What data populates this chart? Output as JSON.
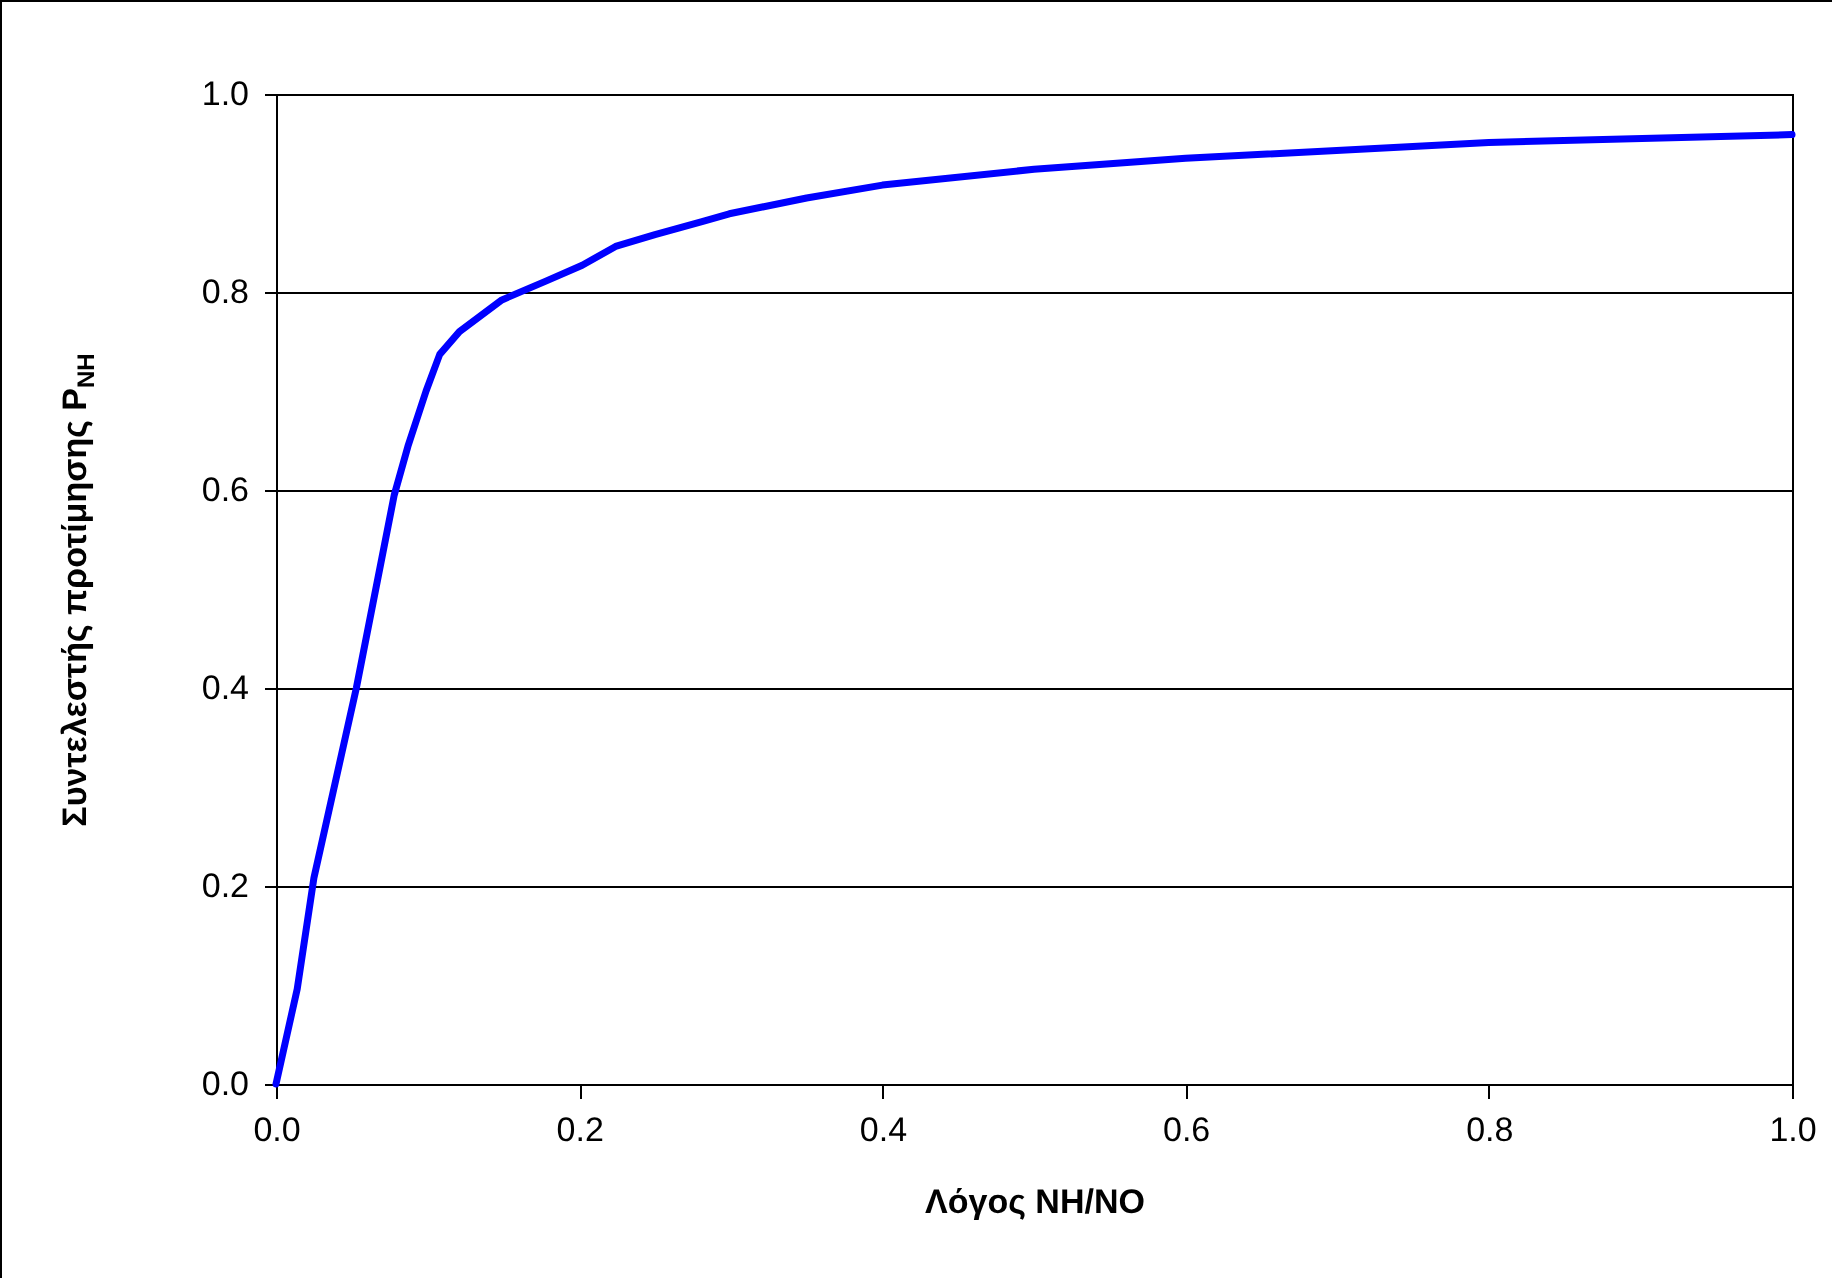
{
  "chart_data": {
    "type": "line",
    "xlabel": "Λόγος NH/NO",
    "ylabel": "Συντελεστής προτίμησης P$_{NH}$",
    "x": [
      0,
      0.014,
      0.025,
      0.053,
      0.078,
      0.087,
      0.099,
      0.108,
      0.121,
      0.149,
      0.178,
      0.202,
      0.224,
      0.25,
      0.281,
      0.299,
      0.35,
      0.4,
      0.5,
      0.6,
      0.8,
      1.0
    ],
    "series": [
      {
        "color": "#0000ff",
        "values": [
          0,
          0.096,
          0.208,
          0.4,
          0.595,
          0.644,
          0.7,
          0.737,
          0.76,
          0.792,
          0.811,
          0.827,
          0.846,
          0.858,
          0.871,
          0.879,
          0.895,
          0.908,
          0.924,
          0.935,
          0.951,
          0.959
        ]
      }
    ],
    "xlim": [
      0,
      1
    ],
    "ylim": [
      0,
      1
    ],
    "xticks": [
      {
        "value": 0,
        "label": "0.0"
      },
      {
        "value": 0.2,
        "label": "0.2"
      },
      {
        "value": 0.4,
        "label": "0.4"
      },
      {
        "value": 0.6,
        "label": "0.6"
      },
      {
        "value": 0.8,
        "label": "0.8"
      },
      {
        "value": 1,
        "label": "1.0"
      }
    ],
    "yticks": [
      {
        "value": 0,
        "label": "0.0"
      },
      {
        "value": 0.2,
        "label": "0.2"
      },
      {
        "value": 0.4,
        "label": "0.4"
      },
      {
        "value": 0.6,
        "label": "0.6"
      },
      {
        "value": 0.8,
        "label": "0.8"
      },
      {
        "value": 1,
        "label": "1.0"
      }
    ],
    "grid": "y",
    "line_style": "solid"
  }
}
